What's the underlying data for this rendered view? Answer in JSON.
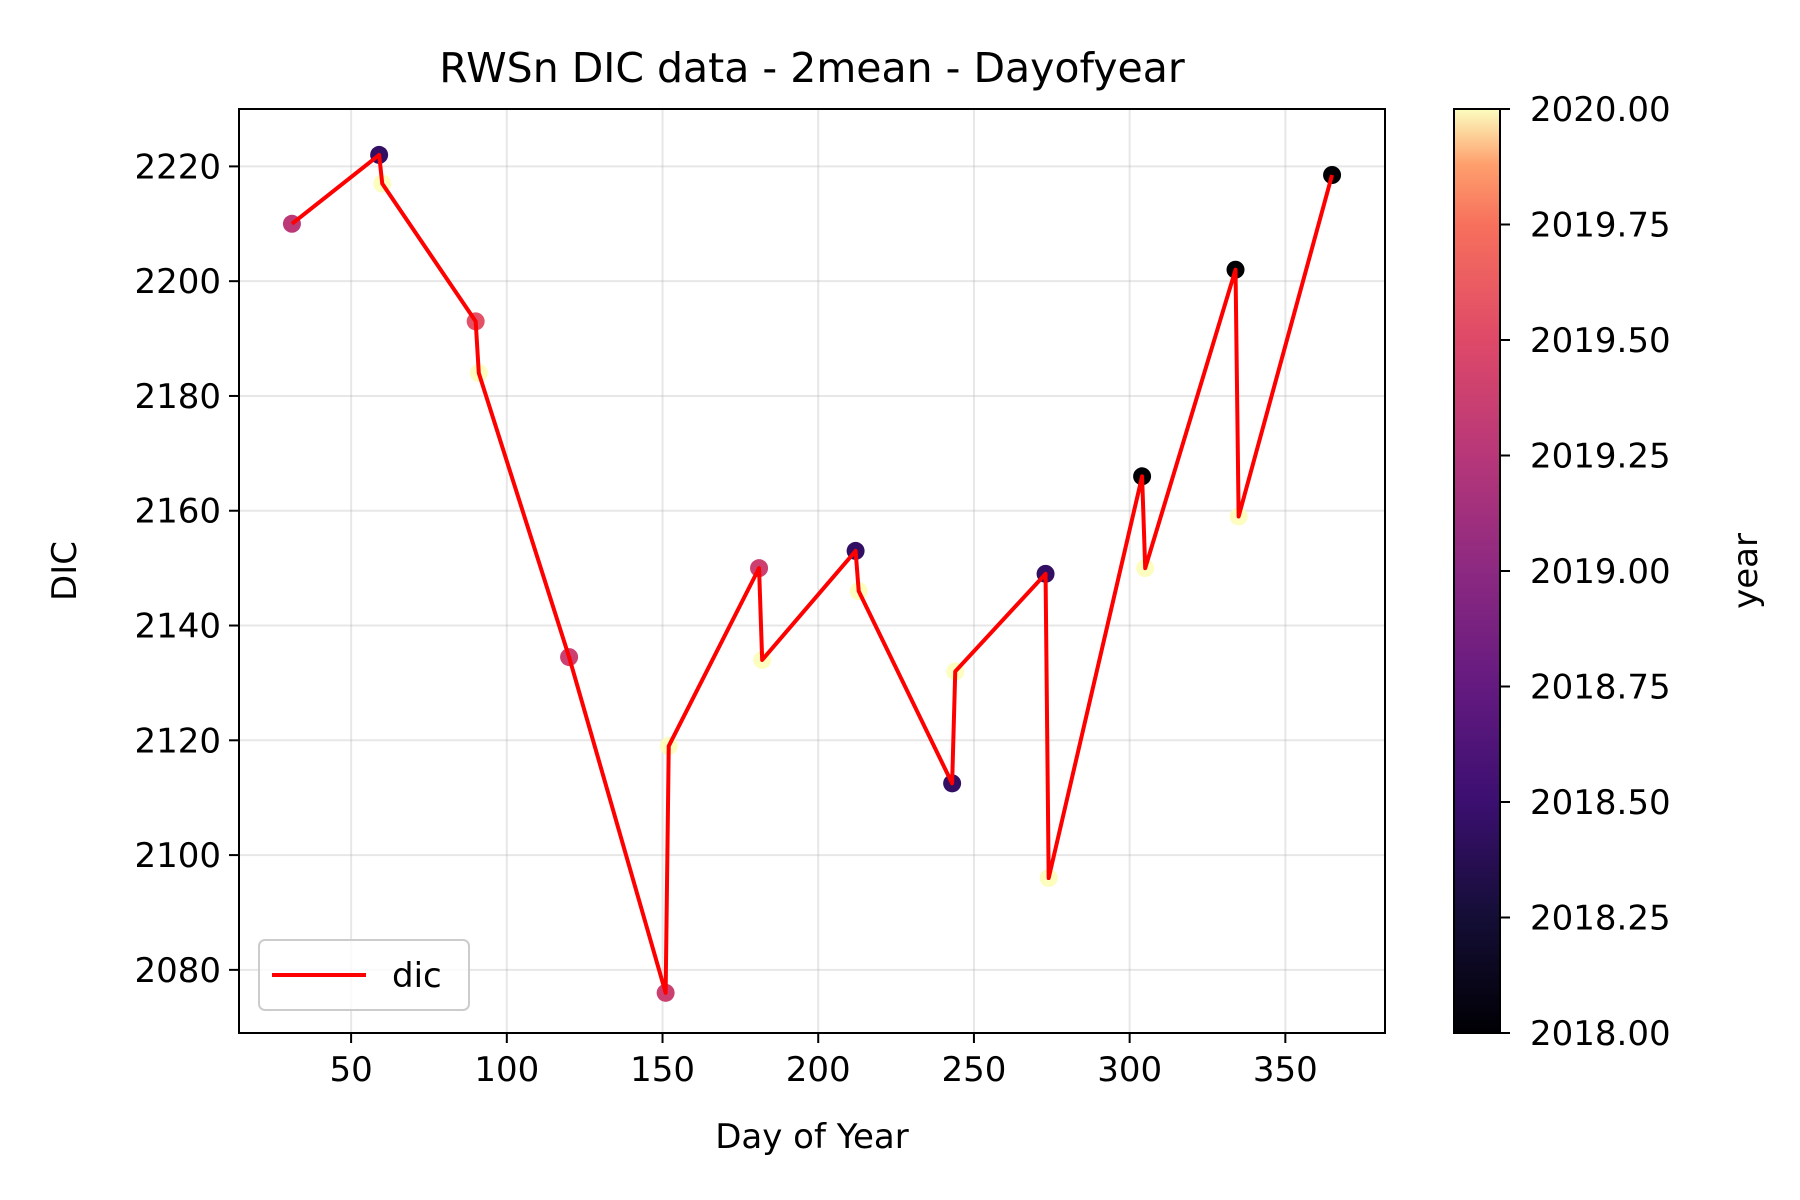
{
  "chart_data": {
    "type": "scatter",
    "title": "RWSn DIC data - 2mean - Dayofyear",
    "xlabel": "Day of Year",
    "ylabel": "DIC",
    "xlim": [
      14,
      382
    ],
    "ylim": [
      2069,
      2230
    ],
    "xticks": [
      50,
      100,
      150,
      200,
      250,
      300,
      350
    ],
    "yticks": [
      2080,
      2100,
      2120,
      2140,
      2160,
      2180,
      2200,
      2220
    ],
    "grid": true,
    "legend": {
      "position": "lower-left",
      "entries": [
        "dic"
      ]
    },
    "line_series": {
      "name": "dic",
      "color": "#ff0000",
      "x": [
        31,
        59,
        60,
        90,
        91,
        120,
        151,
        152,
        181,
        182,
        212,
        213,
        243,
        244,
        273,
        274,
        304,
        305,
        334,
        335,
        365
      ],
      "y": [
        2210,
        2222,
        2217,
        2193,
        2184,
        2134.5,
        2076,
        2119,
        2150,
        2134,
        2153,
        2146,
        2112.5,
        2132,
        2149,
        2096,
        2166,
        2150,
        2202,
        2159,
        2218.5
      ]
    },
    "scatter_points": [
      {
        "x": 31,
        "y": 2210,
        "year": 2019.28
      },
      {
        "x": 59,
        "y": 2222,
        "year": 2018.45
      },
      {
        "x": 60,
        "y": 2217,
        "year": 2020.0
      },
      {
        "x": 90,
        "y": 2193,
        "year": 2019.55
      },
      {
        "x": 91,
        "y": 2184,
        "year": 2020.0
      },
      {
        "x": 120,
        "y": 2134.5,
        "year": 2019.38
      },
      {
        "x": 151,
        "y": 2076,
        "year": 2019.38
      },
      {
        "x": 152,
        "y": 2119,
        "year": 2020.0
      },
      {
        "x": 181,
        "y": 2150,
        "year": 2019.38
      },
      {
        "x": 182,
        "y": 2134,
        "year": 2020.0
      },
      {
        "x": 212,
        "y": 2153,
        "year": 2018.45
      },
      {
        "x": 213,
        "y": 2146,
        "year": 2020.0
      },
      {
        "x": 243,
        "y": 2112.5,
        "year": 2018.45
      },
      {
        "x": 244,
        "y": 2132,
        "year": 2020.0
      },
      {
        "x": 273,
        "y": 2149,
        "year": 2018.45
      },
      {
        "x": 274,
        "y": 2096,
        "year": 2020.0
      },
      {
        "x": 304,
        "y": 2166,
        "year": 2018.0
      },
      {
        "x": 305,
        "y": 2150,
        "year": 2020.0
      },
      {
        "x": 334,
        "y": 2202,
        "year": 2018.0
      },
      {
        "x": 335,
        "y": 2159,
        "year": 2020.0
      },
      {
        "x": 365,
        "y": 2218.5,
        "year": 2018.0
      }
    ],
    "colorbar": {
      "label": "year",
      "colormap": "magma",
      "range": [
        2018.0,
        2020.0
      ],
      "ticks": [
        "2018.00",
        "2018.25",
        "2018.50",
        "2018.75",
        "2019.00",
        "2019.25",
        "2019.50",
        "2019.75",
        "2020.00"
      ]
    }
  }
}
